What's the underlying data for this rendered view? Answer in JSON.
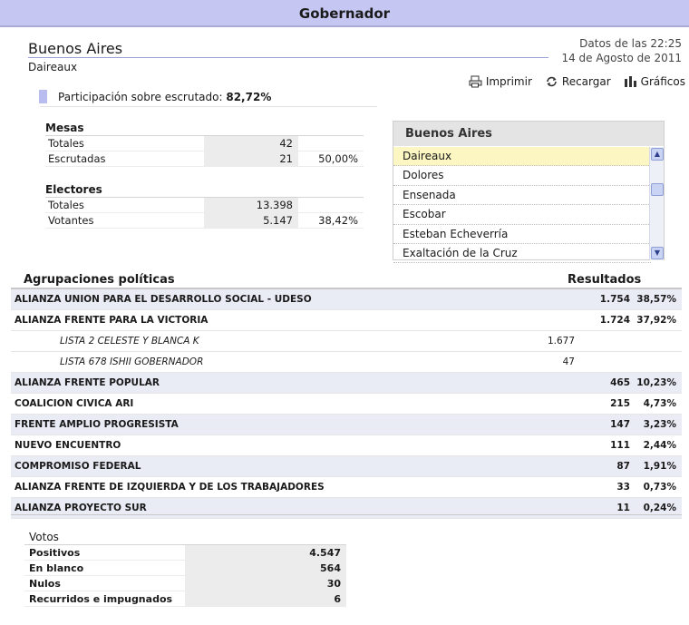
{
  "header": {
    "title": "Gobernador"
  },
  "location": {
    "province": "Buenos Aires",
    "district": "Daireaux"
  },
  "datetime": {
    "time_line": "Datos de las 22:25",
    "date_line": "14 de Agosto de 2011"
  },
  "actions": {
    "print": "Imprimir",
    "reload": "Recargar",
    "charts": "Gráficos"
  },
  "participation": {
    "label": "Participación sobre escrutado:",
    "value": "82,72%"
  },
  "mesas": {
    "title": "Mesas",
    "rows": [
      {
        "label": "Totales",
        "value": "42",
        "pct": ""
      },
      {
        "label": "Escrutadas",
        "value": "21",
        "pct": "50,00%"
      }
    ]
  },
  "electores": {
    "title": "Electores",
    "rows": [
      {
        "label": "Totales",
        "value": "13.398",
        "pct": ""
      },
      {
        "label": "Votantes",
        "value": "5.147",
        "pct": "38,42%"
      }
    ]
  },
  "selector": {
    "title": "Buenos Aires",
    "items": [
      "Daireaux",
      "Dolores",
      "Ensenada",
      "Escobar",
      "Esteban Echeverría",
      "Exaltación de la Cruz"
    ],
    "selected": "Daireaux"
  },
  "results": {
    "header_left": "Agrupaciones políticas",
    "header_right": "Resultados",
    "rows": [
      {
        "name": "ALIANZA UNION PARA EL DESARROLLO SOCIAL - UDESO",
        "votes": "1.754",
        "pct": "38,57%"
      },
      {
        "name": "ALIANZA FRENTE PARA LA VICTORIA",
        "votes": "1.724",
        "pct": "37,92%"
      },
      {
        "name": "LISTA 2 CELESTE Y BLANCA K",
        "votes": "1.677",
        "pct": "",
        "sub": true
      },
      {
        "name": "LISTA 678 ISHII GOBERNADOR",
        "votes": "47",
        "pct": "",
        "sub": true
      },
      {
        "name": "ALIANZA FRENTE POPULAR",
        "votes": "465",
        "pct": "10,23%"
      },
      {
        "name": "COALICION CIVICA ARI",
        "votes": "215",
        "pct": "4,73%"
      },
      {
        "name": "FRENTE AMPLIO PROGRESISTA",
        "votes": "147",
        "pct": "3,23%"
      },
      {
        "name": "NUEVO ENCUENTRO",
        "votes": "111",
        "pct": "2,44%"
      },
      {
        "name": "COMPROMISO FEDERAL",
        "votes": "87",
        "pct": "1,91%"
      },
      {
        "name": "ALIANZA FRENTE DE IZQUIERDA Y DE LOS TRABAJADORES",
        "votes": "33",
        "pct": "0,73%"
      },
      {
        "name": "ALIANZA PROYECTO SUR",
        "votes": "11",
        "pct": "0,24%"
      }
    ]
  },
  "votos": {
    "title": "Votos",
    "rows": [
      {
        "label": "Positivos",
        "value": "4.547"
      },
      {
        "label": "En blanco",
        "value": "564"
      },
      {
        "label": "Nulos",
        "value": "30"
      },
      {
        "label": "Recurridos e impugnados",
        "value": "6"
      }
    ]
  },
  "colors": {
    "header_bg": "#c5c7f2",
    "row_shade": "#e9ebf5",
    "selected_bg": "#fbf6c2"
  }
}
